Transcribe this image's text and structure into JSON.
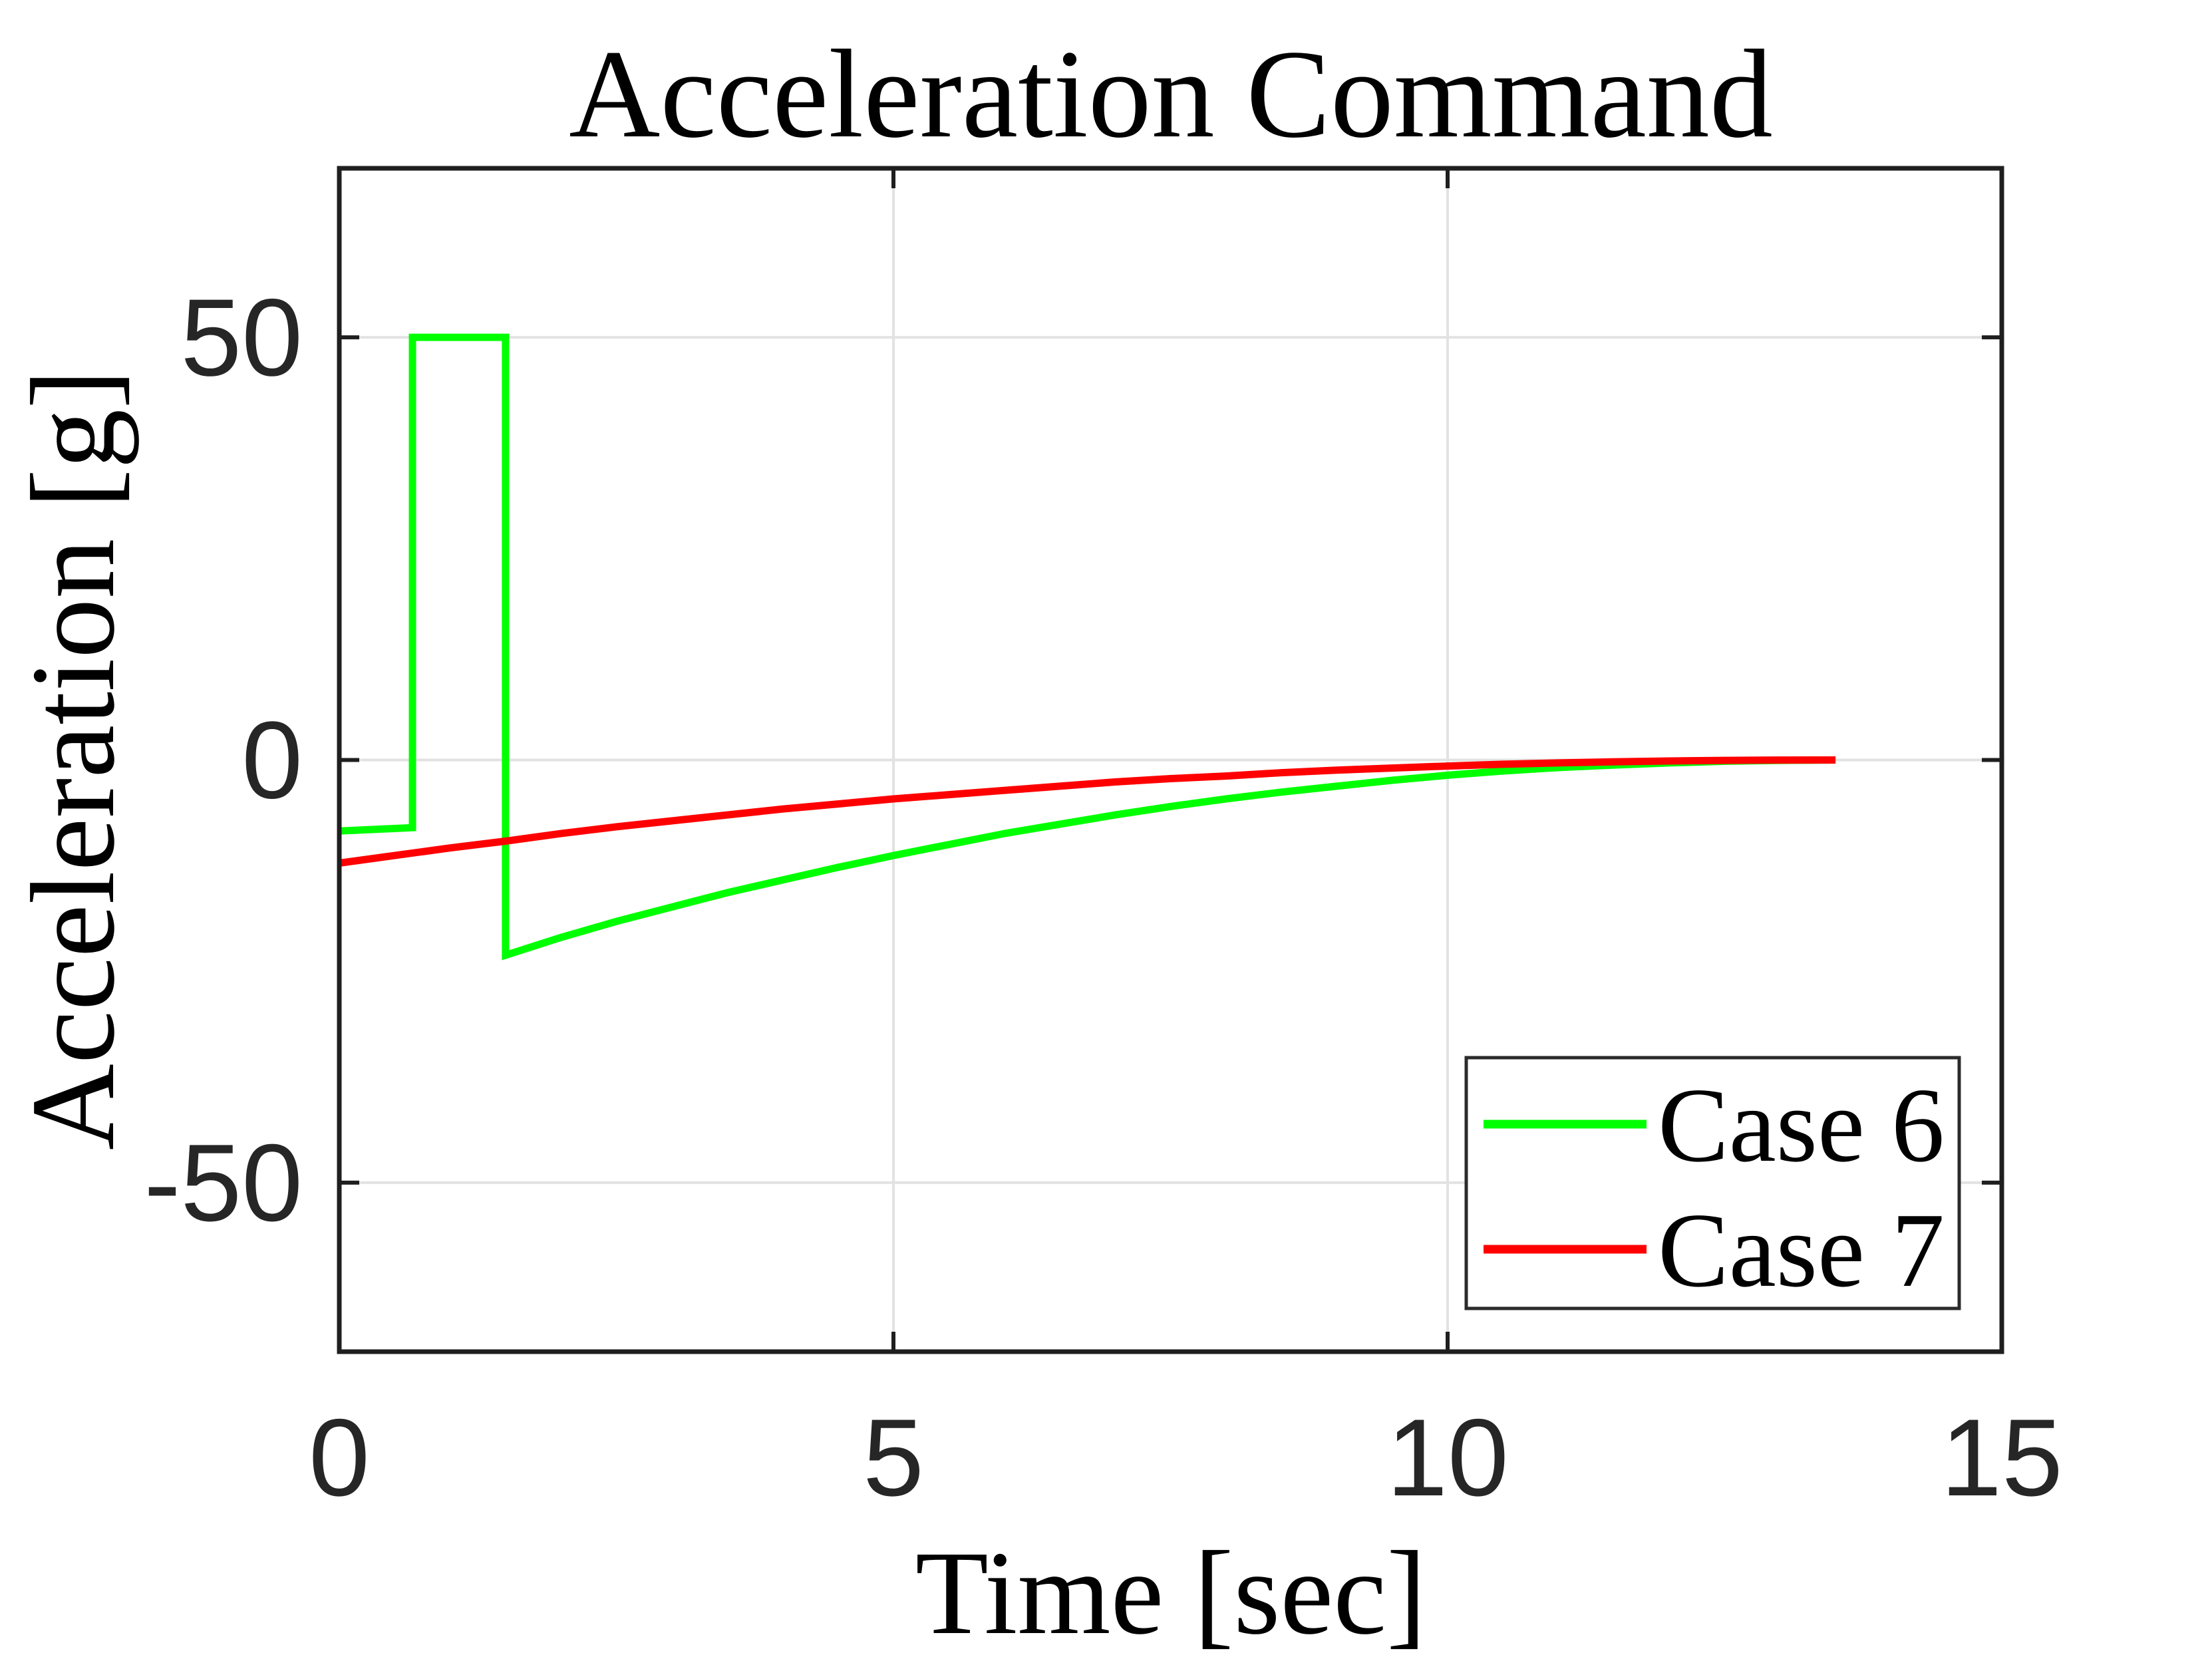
{
  "figure": {
    "title": "Acceleration Command",
    "x_axis_label": "Time [sec]",
    "y_axis_label": "Acceleration [g]",
    "background_color": "#ffffff",
    "axis_color": "#1f1f1f",
    "grid_color": "#e2e2e2",
    "tick_label_color": "#262626",
    "legend_border_color": "#2b2b2b"
  },
  "legend": {
    "position": "southeast",
    "items": [
      {
        "label": "Case 6",
        "color": "#00ff00"
      },
      {
        "label": "Case 7",
        "color": "#ff0000"
      }
    ]
  },
  "chart_data": {
    "type": "line",
    "title": "Acceleration Command",
    "xlabel": "Time [sec]",
    "ylabel": "Acceleration [g]",
    "xlim": [
      0,
      15
    ],
    "ylim": [
      -70,
      70
    ],
    "x_ticks": [
      0,
      5,
      10,
      15
    ],
    "y_ticks": [
      50,
      0,
      -50
    ],
    "grid": true,
    "legend_position": "southeast",
    "series": [
      {
        "name": "Case 6",
        "color": "#00ff00",
        "linewidth": 11,
        "points": [
          [
            0,
            -8.4
          ],
          [
            0.33,
            -8.2
          ],
          [
            0.66,
            -8.0
          ],
          [
            0.66,
            50
          ],
          [
            1.5,
            50
          ],
          [
            1.5,
            -23.1
          ],
          [
            2,
            -21.0
          ],
          [
            2.5,
            -19.1
          ],
          [
            3,
            -17.4
          ],
          [
            3.5,
            -15.7
          ],
          [
            4,
            -14.2
          ],
          [
            4.5,
            -12.7
          ],
          [
            5,
            -11.3
          ],
          [
            5.5,
            -10.0
          ],
          [
            6,
            -8.7
          ],
          [
            6.5,
            -7.6
          ],
          [
            7,
            -6.5
          ],
          [
            7.5,
            -5.5
          ],
          [
            8,
            -4.6
          ],
          [
            8.5,
            -3.8
          ],
          [
            9,
            -3.1
          ],
          [
            9.5,
            -2.4
          ],
          [
            10,
            -1.8
          ],
          [
            10.5,
            -1.3
          ],
          [
            11,
            -0.9
          ],
          [
            11.5,
            -0.6
          ],
          [
            12,
            -0.35
          ],
          [
            12.5,
            -0.15
          ],
          [
            13,
            -0.05
          ],
          [
            13.5,
            0
          ]
        ]
      },
      {
        "name": "Case 7",
        "color": "#ff0000",
        "linewidth": 11,
        "points": [
          [
            0,
            -12.2
          ],
          [
            0.5,
            -11.3
          ],
          [
            1,
            -10.4
          ],
          [
            1.5,
            -9.6
          ],
          [
            2,
            -8.7
          ],
          [
            2.5,
            -7.9
          ],
          [
            3,
            -7.2
          ],
          [
            3.5,
            -6.5
          ],
          [
            4,
            -5.8
          ],
          [
            4.5,
            -5.2
          ],
          [
            5,
            -4.6
          ],
          [
            5.5,
            -4.1
          ],
          [
            6,
            -3.6
          ],
          [
            6.5,
            -3.1
          ],
          [
            7,
            -2.6
          ],
          [
            7.5,
            -2.2
          ],
          [
            8,
            -1.9
          ],
          [
            8.5,
            -1.5
          ],
          [
            9,
            -1.2
          ],
          [
            9.5,
            -0.95
          ],
          [
            10,
            -0.72
          ],
          [
            10.5,
            -0.5
          ],
          [
            11,
            -0.35
          ],
          [
            11.5,
            -0.22
          ],
          [
            12,
            -0.12
          ],
          [
            12.5,
            -0.05
          ],
          [
            13,
            -0.01
          ],
          [
            13.5,
            0
          ]
        ]
      }
    ]
  }
}
